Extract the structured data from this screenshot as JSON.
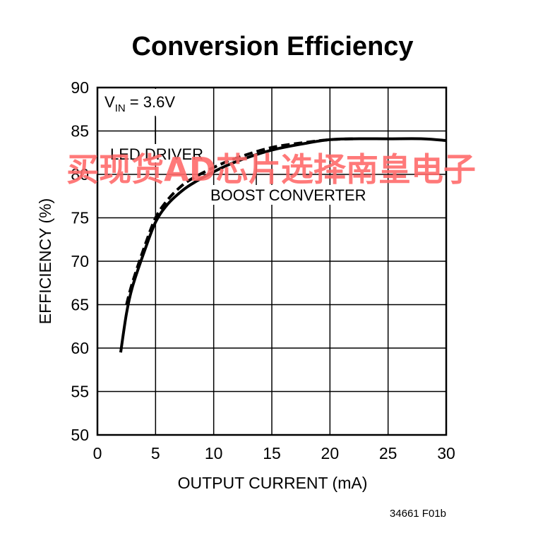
{
  "chart_data": {
    "type": "line",
    "title": "Conversion Efficiency",
    "xlabel": "OUTPUT CURRENT (mA)",
    "ylabel": "EFFICIENCY (%)",
    "xlim": [
      0,
      30
    ],
    "ylim": [
      50,
      90
    ],
    "x_ticks": [
      0,
      5,
      10,
      15,
      20,
      25,
      30
    ],
    "y_ticks": [
      50,
      55,
      60,
      65,
      70,
      75,
      80,
      85,
      90
    ],
    "grid": true,
    "annotation_condition_main": "V",
    "annotation_condition_sub": "IN",
    "annotation_condition_rest": " = 3.6V",
    "series": [
      {
        "name": "LED DRIVER",
        "style": "solid",
        "color": "#000000",
        "x": [
          2,
          2.5,
          3,
          4,
          5,
          6,
          7,
          8,
          10,
          12,
          15,
          18,
          20,
          22,
          25,
          28,
          30
        ],
        "y": [
          59.5,
          64,
          67,
          71,
          74.5,
          76.5,
          77.8,
          78.8,
          80.3,
          81.5,
          82.8,
          83.6,
          84,
          84.1,
          84.1,
          84.1,
          83.9
        ]
      },
      {
        "name": "BOOST CONVERTER",
        "style": "dashed",
        "color": "#000000",
        "x": [
          2.5,
          3,
          4,
          5,
          6,
          7,
          8,
          10,
          12,
          15,
          18,
          20,
          22
        ],
        "y": [
          65,
          67.5,
          71.5,
          75,
          77,
          78.4,
          79.4,
          80.8,
          81.9,
          83.1,
          83.7,
          84,
          84.1
        ]
      }
    ]
  },
  "figure_id": "34661 F01b",
  "watermark": "买现货AD芯片选择南皇电子"
}
